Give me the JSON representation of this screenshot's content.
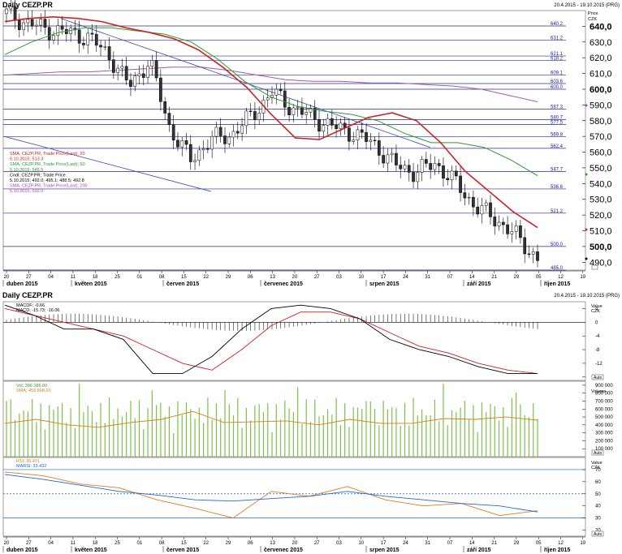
{
  "header": {
    "title": "Daily CEZP.PR",
    "date_range": "20.4.2015 - 19.10.2015 (PRG)",
    "title2": "Daily CEZP.PR",
    "date_range2": "20.4.2015 - 19.10.2015 (PRG)"
  },
  "legend": {
    "price": [
      {
        "label": "SMA, CEZP.PR, Trade Price(Last); 20",
        "color": "#cc2222"
      },
      {
        "label": "5.10.2015; 513.3",
        "color": "#cc2222"
      },
      {
        "label": "SMA, CEZP.PR, Trade Price(Last); 50",
        "color": "#2e9b2e"
      },
      {
        "label": "5.10.2015; 545.5",
        "color": "#2e9b2e"
      },
      {
        "label": "Cndl; CEZP.PR; Trade Price",
        "color": "#000000"
      },
      {
        "label": "5.10.2015; 492.0; 495.1; 488.5; 492.8",
        "color": "#000000"
      },
      {
        "label": "SMA, CEZP.PR, Trade Price(Last); 200",
        "color": "#aa44aa"
      },
      {
        "label": "5.10.2015; 592.0",
        "color": "#aa44aa"
      }
    ],
    "macd": [
      {
        "label": "MACDF; -0.66",
        "color": "#000000"
      },
      {
        "label": "MACD; -15.73; -16.06",
        "color": "#000000"
      }
    ],
    "volume": [
      {
        "label": "Vol; 396 386.00",
        "color": "#2e9b2e"
      },
      {
        "label": "SMA; 459 868.20",
        "color": "#e07a20"
      }
    ],
    "rsi": [
      {
        "label": "RSI; 35.471",
        "color": "#e07a20"
      },
      {
        "label": "MARSI; 33.432",
        "color": "#2266cc"
      }
    ]
  },
  "axes": {
    "price_unit": "Price\nCZK",
    "price_ticks": [
      "640,0",
      "630,0",
      "620,0",
      "610,0",
      "600,0",
      "590,0",
      "580,0",
      "570,0",
      "560,0",
      "550,0",
      "540,0",
      "530,0",
      "520,0",
      "510,0",
      "500,0",
      "490,0"
    ],
    "macd_unit": "Value\nCZK",
    "macd_ticks": [
      "4",
      "0",
      "-4",
      "-8",
      "-12",
      "-16"
    ],
    "volume_unit": "Volume",
    "volume_ticks": [
      "900 000",
      "800 000",
      "700 000",
      "600 000",
      "500 000",
      "400 000",
      "300 000",
      "200 000",
      "100 000"
    ],
    "rsi_unit": "Value\nCZK",
    "rsi_ticks": [
      "70",
      "60",
      "50",
      "40",
      "30",
      "20"
    ],
    "x_days": [
      "20",
      "27",
      "04",
      "11",
      "18",
      "25",
      "01",
      "08",
      "15",
      "22",
      "29",
      "06",
      "13",
      "20",
      "27",
      "03",
      "10",
      "17",
      "24",
      "31",
      "07",
      "14",
      "21",
      "29",
      "05",
      "12",
      "19"
    ],
    "x_months": [
      "duben 2015",
      "květen 2015",
      "červen 2015",
      "červenec 2015",
      "srpen 2015",
      "září 2015",
      "říjen 2015"
    ],
    "auto_label": "Auto"
  },
  "levels": [
    "640.2",
    "631.2",
    "621.1",
    "618.2",
    "609.1",
    "603.6",
    "600.0",
    "587.3",
    "580.7",
    "577.5",
    "569.8",
    "562.4",
    "547.7",
    "536.6",
    "521.2",
    "500.0",
    "485.0"
  ],
  "chart_data": {
    "type": "line",
    "title": "Daily CEZP.PR",
    "ylabel": "Price CZK",
    "ylim": [
      485,
      650
    ],
    "horizontal_levels": [
      640.2,
      631.2,
      621.1,
      618.2,
      609.1,
      603.6,
      600.0,
      587.3,
      580.7,
      577.5,
      569.8,
      562.4,
      547.7,
      536.6,
      521.2,
      500.0,
      485.0
    ],
    "series": [
      {
        "name": "SMA, CEZP.PR, Trade Price(Last); 20",
        "values": [
          643,
          645,
          646,
          645,
          643,
          639,
          636,
          632,
          625,
          614,
          601,
          584,
          569,
          568,
          575,
          582,
          585,
          580,
          566,
          548,
          535,
          522,
          512
        ]
      },
      {
        "name": "SMA, CEZP.PR, Trade Price(Last); 50",
        "values": [
          622,
          630,
          636,
          639,
          639,
          637,
          635,
          630,
          619,
          605,
          595,
          589,
          586,
          584,
          580,
          572,
          566,
          566,
          563,
          555,
          545
        ]
      },
      {
        "name": "SMA, CEZP.PR, Trade Price(Last); 200",
        "values": [
          609,
          610,
          611,
          611,
          612,
          613,
          614,
          614,
          612,
          609,
          606,
          605,
          605,
          604,
          604,
          603,
          602,
          600,
          596,
          592
        ]
      },
      {
        "name": "Cndl; CEZP.PR; Trade Price",
        "values": [
          648,
          642,
          638,
          636,
          633,
          622,
          602,
          618,
          575,
          555,
          568,
          571,
          583,
          598,
          588,
          582,
          576,
          572,
          565,
          552,
          547,
          553,
          540,
          525,
          517,
          506,
          492
        ]
      }
    ],
    "macd": {
      "ylim": [
        -17,
        6
      ],
      "series": [
        {
          "name": "MACD",
          "values": [
            5,
            2,
            -2,
            -2,
            -5,
            -15,
            -15,
            -10,
            -2,
            4,
            5,
            4,
            1,
            -5,
            -8,
            -10,
            -13,
            -15,
            -15
          ]
        },
        {
          "name": "MACDF",
          "values": [
            4,
            2,
            0,
            -2,
            -4,
            -8,
            -12,
            -14,
            -8,
            -1,
            3,
            3,
            1,
            -3,
            -7,
            -9,
            -12,
            -14,
            -15
          ]
        }
      ]
    },
    "volume": {
      "ylim": [
        0,
        950000
      ],
      "series": [
        {
          "name": "SMA",
          "values": [
            420000,
            470000,
            400000,
            370000,
            430000,
            470000,
            570000,
            430000,
            440000,
            450000,
            400000,
            470000,
            420000,
            420000,
            480000,
            470000,
            500000,
            460000
          ]
        }
      ]
    },
    "rsi": {
      "ylim": [
        15,
        80
      ],
      "levels": [
        70,
        50,
        30
      ],
      "series": [
        {
          "name": "RSI",
          "values": [
            68,
            65,
            58,
            55,
            45,
            38,
            30,
            52,
            48,
            56,
            45,
            40,
            42,
            32,
            36
          ]
        },
        {
          "name": "MARSI",
          "values": [
            66,
            62,
            57,
            52,
            49,
            45,
            44,
            46,
            48,
            52,
            48,
            45,
            42,
            40,
            35
          ]
        }
      ]
    }
  }
}
